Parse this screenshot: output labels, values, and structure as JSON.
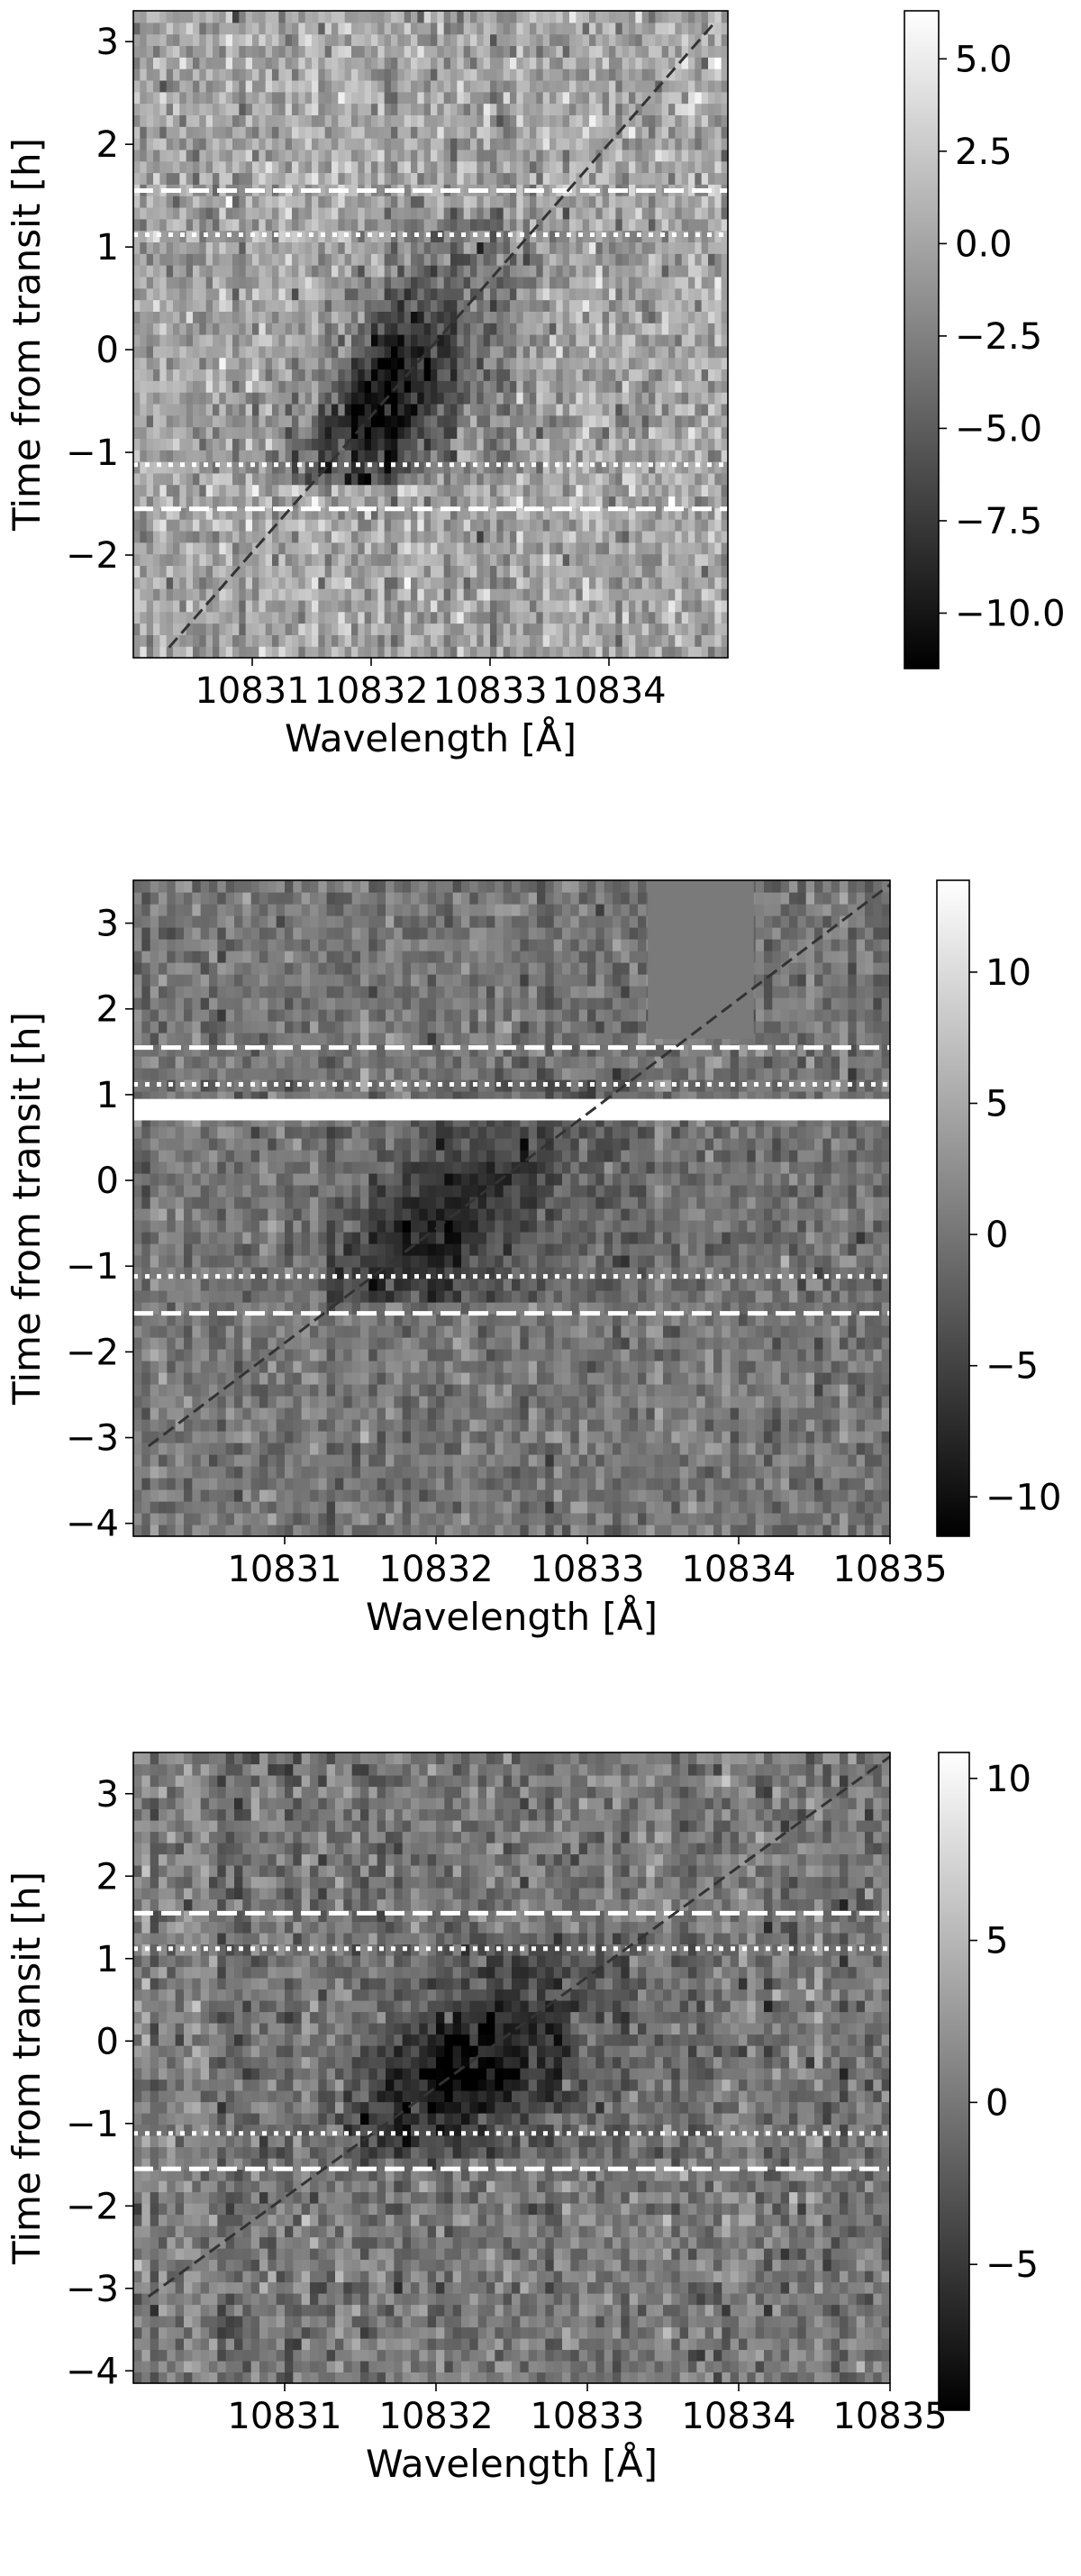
{
  "chart_data": [
    {
      "type": "heatmap",
      "xlabel": "Wavelength [Å]",
      "ylabel": "Time from transit [h]",
      "xlim": [
        10830.0,
        10835.0
      ],
      "ylim": [
        -3.0,
        3.3
      ],
      "xticks": [
        10831,
        10832,
        10833,
        10834
      ],
      "yticks": [
        -2,
        -1,
        0,
        1,
        2,
        3
      ],
      "colorbar": {
        "min": -11.5,
        "max": 6.3,
        "ticks": [
          5.0,
          2.5,
          0.0,
          -2.5,
          -5.0,
          -7.5,
          -10.0
        ],
        "tick_labels": [
          "5.0",
          "2.5",
          "0.0",
          "−2.5",
          "−5.0",
          "−7.5",
          "−10.0"
        ]
      },
      "colormap": "gray",
      "absorption_feature": {
        "x_center": 10832.1,
        "y_center": -0.5,
        "depth": -10
      },
      "trail_line": {
        "style": "dashed",
        "color": "#333333",
        "points": [
          [
            10830.3,
            -2.9
          ],
          [
            10834.9,
            3.2
          ]
        ]
      },
      "hlines_dashed": [
        1.55,
        -1.55
      ],
      "hlines_dotted": [
        1.12,
        -1.12
      ],
      "masked_bands": []
    },
    {
      "type": "heatmap",
      "xlabel": "Wavelength [Å]",
      "ylabel": "Time from transit [h]",
      "xlim": [
        10830.0,
        10835.0
      ],
      "ylim": [
        -4.15,
        3.5
      ],
      "xticks": [
        10831,
        10832,
        10833,
        10834,
        10835
      ],
      "yticks": [
        -4,
        -3,
        -2,
        -1,
        0,
        1,
        2,
        3
      ],
      "colorbar": {
        "min": -11.5,
        "max": 13.5,
        "ticks": [
          10,
          5,
          0,
          -5,
          -10
        ],
        "tick_labels": [
          "10",
          "5",
          "0",
          "−5",
          "−10"
        ]
      },
      "colormap": "gray",
      "absorption_feature": {
        "x_center": 10832.0,
        "y_center": -0.5,
        "depth": -8
      },
      "trail_line": {
        "style": "dashed",
        "color": "#333333",
        "points": [
          [
            10830.1,
            -3.1
          ],
          [
            10835.0,
            3.45
          ]
        ]
      },
      "hlines_dashed": [
        1.55,
        -1.55
      ],
      "hlines_dotted": [
        1.12,
        -1.12
      ],
      "masked_bands": [
        {
          "y0": 0.7,
          "y1": 0.95,
          "color": "#ffffff"
        }
      ],
      "masked_blocks": [
        {
          "x0": 10833.4,
          "x1": 10834.1,
          "y0": 1.65,
          "y1": 3.5,
          "color": "#7a7a7a"
        }
      ]
    },
    {
      "type": "heatmap",
      "xlabel": "Wavelength [Å]",
      "ylabel": "Time from transit [h]",
      "xlim": [
        10830.0,
        10835.0
      ],
      "ylim": [
        -4.15,
        3.5
      ],
      "xticks": [
        10831,
        10832,
        10833,
        10834,
        10835
      ],
      "yticks": [
        -4,
        -3,
        -2,
        -1,
        0,
        1,
        2,
        3
      ],
      "colorbar": {
        "min": -9.5,
        "max": 10.8,
        "ticks": [
          10,
          5,
          0,
          -5
        ],
        "tick_labels": [
          "10",
          "5",
          "0",
          "−5"
        ]
      },
      "colormap": "gray",
      "absorption_feature": {
        "x_center": 10832.1,
        "y_center": -0.4,
        "depth": -8
      },
      "trail_line": {
        "style": "dashed",
        "color": "#333333",
        "points": [
          [
            10830.1,
            -3.1
          ],
          [
            10835.0,
            3.45
          ]
        ]
      },
      "hlines_dashed": [
        1.55,
        -1.55
      ],
      "hlines_dotted": [
        1.12,
        -1.12
      ],
      "masked_bands": []
    }
  ]
}
